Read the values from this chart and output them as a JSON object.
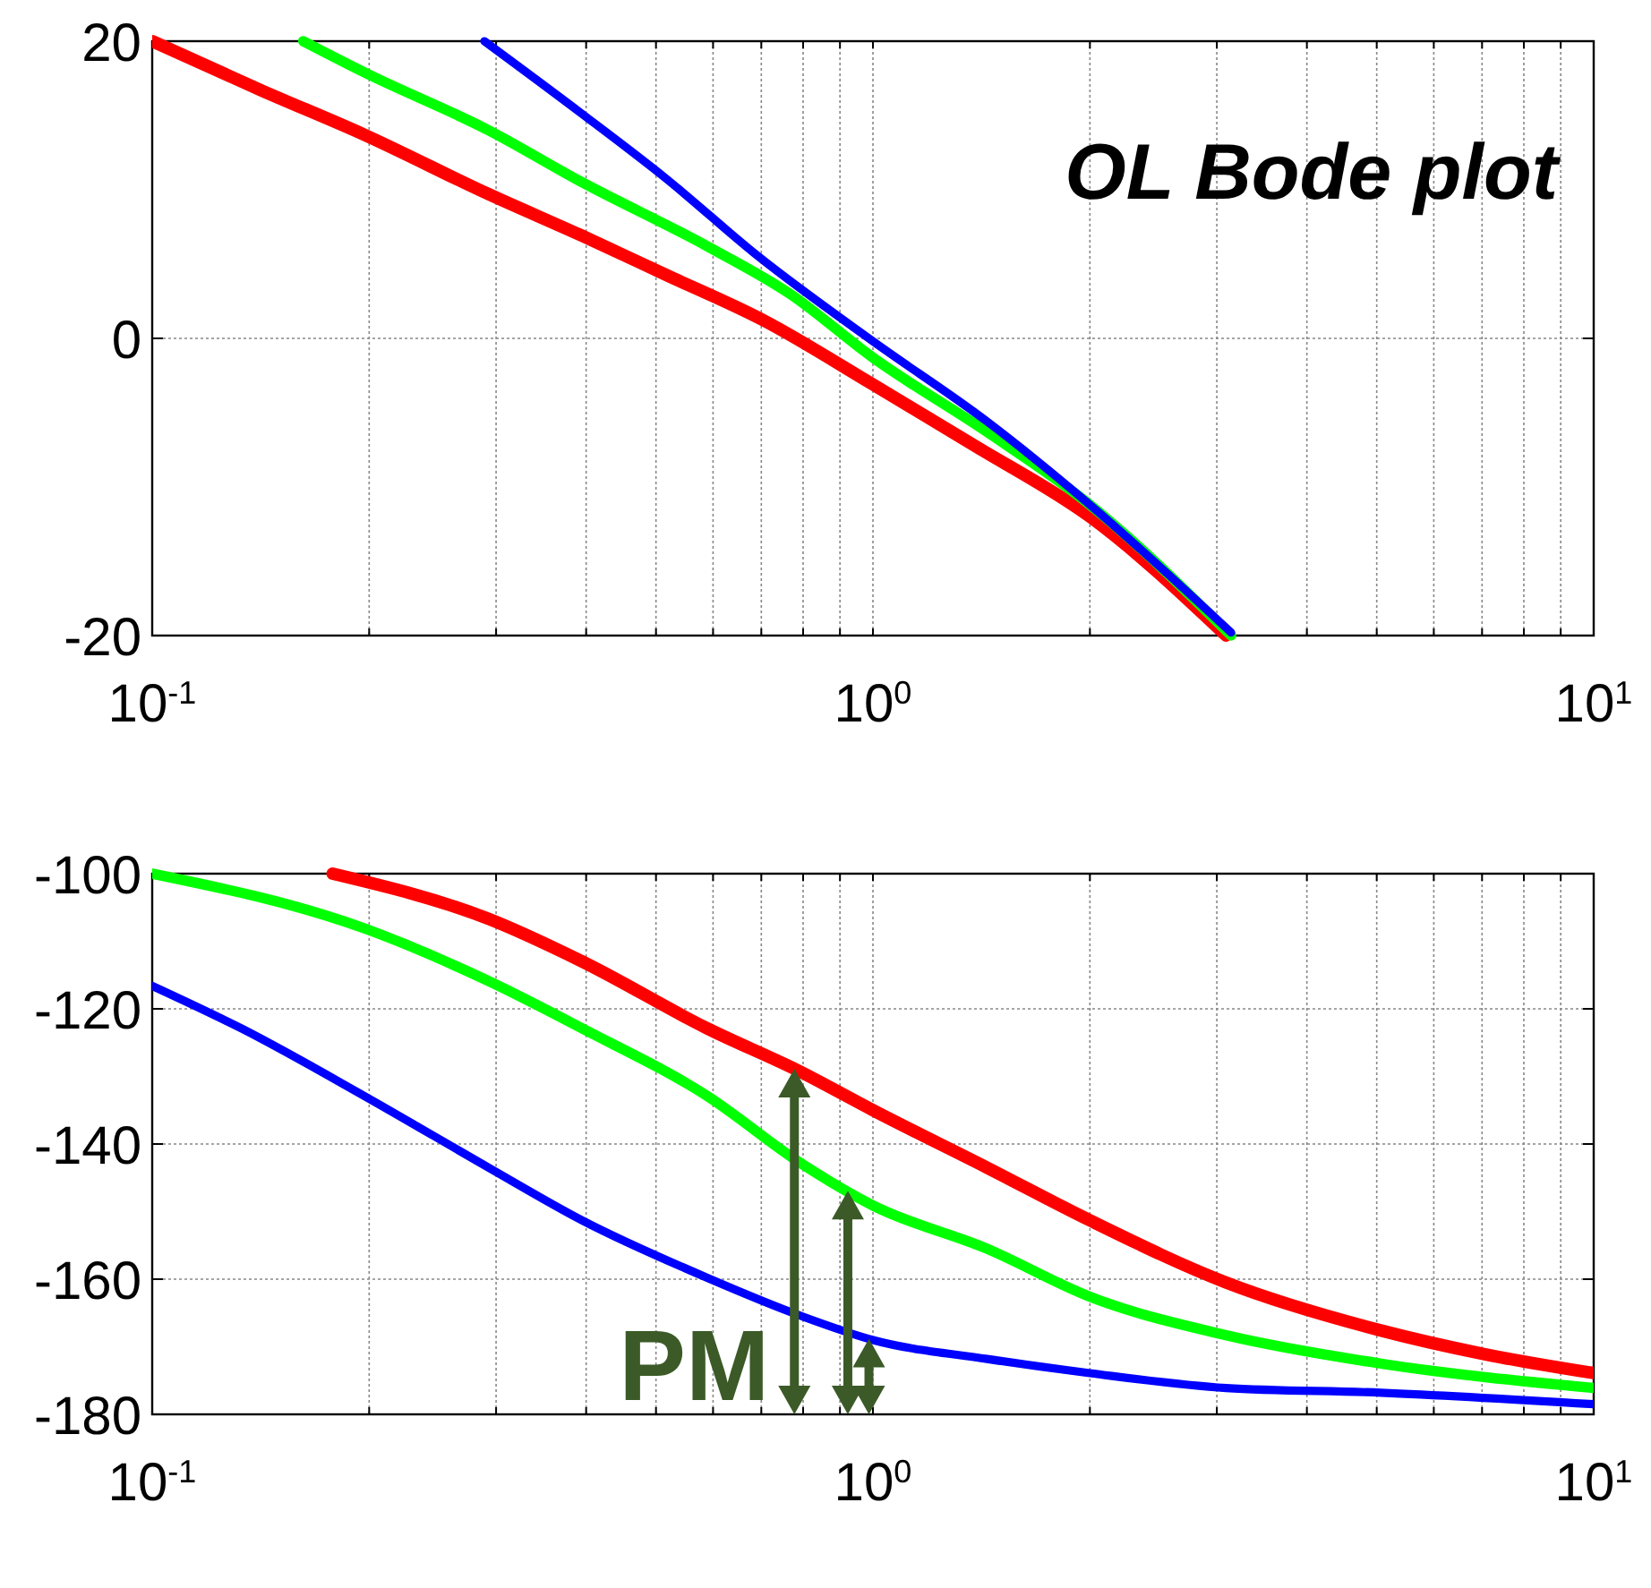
{
  "chart_data": [
    {
      "type": "line",
      "title": "OL Bode plot",
      "log": "x",
      "grid": true,
      "xlim": [
        0.1,
        10
      ],
      "ylim": [
        -20,
        20
      ],
      "xticks": [
        {
          "value": 0.1,
          "label": "10$^{-1}$"
        },
        {
          "value": 1,
          "label": "10$^{0}$"
        },
        {
          "value": 10,
          "label": "10$^{1}$"
        }
      ],
      "yticks": [
        -20,
        0,
        20
      ],
      "series": [
        {
          "color": "#ff0000",
          "x": [
            0.1,
            0.1416,
            0.197,
            0.293,
            0.395,
            0.515,
            0.706,
            1,
            1.393,
            2.0,
            3.09
          ],
          "values": [
            20,
            16.7,
            13.7,
            9.7,
            6.9,
            4.3,
            1.2,
            -3.1,
            -7.3,
            -12,
            -20
          ]
        },
        {
          "color": "#00ff00",
          "x": [
            0.162,
            0.197,
            0.293,
            0.395,
            0.589,
            0.767,
            1,
            1.44,
            2,
            3.14
          ],
          "values": [
            20,
            17.9,
            14,
            10.5,
            6.2,
            3,
            -1.3,
            -6.3,
            -11.2,
            -20
          ]
        },
        {
          "color": "#0000ff",
          "x": [
            0.289,
            0.395,
            0.515,
            0.694,
            1,
            1.44,
            2,
            3.14
          ],
          "values": [
            20,
            15.1,
            10.8,
            5.5,
            -0.2,
            -5.6,
            -11.2,
            -19.8
          ]
        }
      ]
    },
    {
      "type": "line",
      "grid": true,
      "log": "x",
      "xlim": [
        0.1,
        10
      ],
      "ylim": [
        -180,
        -100
      ],
      "xticks": [
        {
          "value": 0.1,
          "label": "10$^{-1}$"
        },
        {
          "value": 1,
          "label": "10$^{0}$"
        },
        {
          "value": 10,
          "label": "10$^{1}$"
        }
      ],
      "yticks": [
        -180,
        -160,
        -140,
        -120,
        -100
      ],
      "annotations": [
        "PM"
      ],
      "series": [
        {
          "color": "#ff0000",
          "x": [
            0.178,
            0.293,
            0.395,
            0.589,
            0.793,
            1,
            1.44,
            2,
            3.09,
            5.07,
            7.06,
            10
          ],
          "values": [
            -100,
            -106.7,
            -113,
            -122.9,
            -129.3,
            -135,
            -143.5,
            -151.3,
            -160.5,
            -167.6,
            -171.1,
            -173.9
          ]
        },
        {
          "color": "#00ff00",
          "x": [
            0.1,
            0.197,
            0.293,
            0.395,
            0.589,
            0.793,
            1,
            1.44,
            2,
            3.09,
            5.07,
            10
          ],
          "values": [
            -100,
            -108.1,
            -115.9,
            -122.9,
            -132.9,
            -142.8,
            -149.1,
            -155.5,
            -162.6,
            -168.3,
            -172.5,
            -176.1
          ]
        },
        {
          "color": "#0000ff",
          "x": [
            0.1,
            0.133,
            0.197,
            0.293,
            0.395,
            0.589,
            0.793,
            1,
            1.44,
            2,
            3.09,
            5.07,
            10
          ],
          "values": [
            -116.6,
            -122.9,
            -132.9,
            -143.5,
            -151.3,
            -159.8,
            -165.4,
            -169,
            -171.8,
            -173.9,
            -176.1,
            -176.8,
            -178.5
          ]
        }
      ]
    }
  ]
}
